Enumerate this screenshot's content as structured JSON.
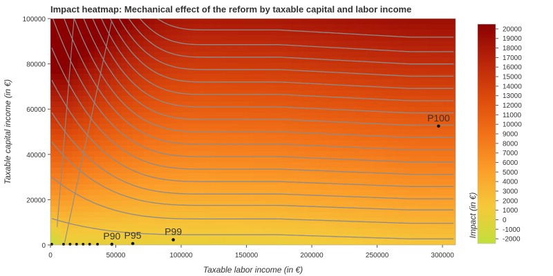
{
  "chart_data": {
    "type": "heatmap",
    "title": "Impact heatmap: Mechanical effect of the reform by taxable capital and labor income",
    "xlabel": "Taxable labor income (in €)",
    "ylabel": "Taxable capital income (in €)",
    "xlim": [
      0,
      310000
    ],
    "ylim": [
      0,
      100000
    ],
    "x_ticks": [
      0,
      50000,
      100000,
      150000,
      200000,
      250000,
      300000
    ],
    "x_tick_labels": [
      "0",
      "50000",
      "100000",
      "150000",
      "200000",
      "250000",
      "300000"
    ],
    "y_ticks": [
      0,
      20000,
      40000,
      60000,
      80000,
      100000
    ],
    "y_tick_labels": [
      "0",
      "20000",
      "40000",
      "60000",
      "80000",
      "100000"
    ],
    "colorbar": {
      "label": "Impact (in €)",
      "range": [
        -2500,
        20500
      ],
      "ticks": [
        -2000,
        -1000,
        0,
        1000,
        2000,
        3000,
        4000,
        5000,
        6000,
        7000,
        8000,
        9000,
        10000,
        11000,
        12000,
        13000,
        14000,
        15000,
        16000,
        17000,
        18000,
        19000,
        20000
      ],
      "tick_labels": [
        "-2000",
        "-1000",
        "0",
        "1000",
        "2000",
        "3000",
        "4000",
        "5000",
        "6000",
        "7000",
        "8000",
        "9000",
        "10000",
        "11000",
        "12000",
        "13000",
        "14000",
        "15000",
        "16000",
        "17000",
        "18000",
        "19000",
        "20000"
      ],
      "colors": [
        "#c2e03c",
        "#f5c93a",
        "#fb9e2a",
        "#f27118",
        "#dc4a0c",
        "#b8240a",
        "#8b0000"
      ]
    },
    "contour_color": "#8c8c8c",
    "contour_levels_y_at_high_labor": [
      4500,
      11500,
      17500,
      22500,
      28000,
      33500,
      39000,
      44500,
      50000,
      55500,
      61000,
      66500,
      72000,
      77500,
      83000,
      88500,
      95000
    ],
    "percentile_points": [
      {
        "label": "P90",
        "x": 47000,
        "y": 300
      },
      {
        "label": "P95",
        "x": 63000,
        "y": 600
      },
      {
        "label": "P99",
        "x": 94000,
        "y": 2300
      },
      {
        "label": "P100",
        "x": 297000,
        "y": 52500
      }
    ],
    "minor_points": [
      {
        "x": 1000,
        "y": 300
      },
      {
        "x": 10000,
        "y": 300
      },
      {
        "x": 15000,
        "y": 300
      },
      {
        "x": 20000,
        "y": 300
      },
      {
        "x": 25000,
        "y": 300
      },
      {
        "x": 30000,
        "y": 300
      },
      {
        "x": 36000,
        "y": 300
      }
    ],
    "grid": false,
    "legend": "none"
  }
}
